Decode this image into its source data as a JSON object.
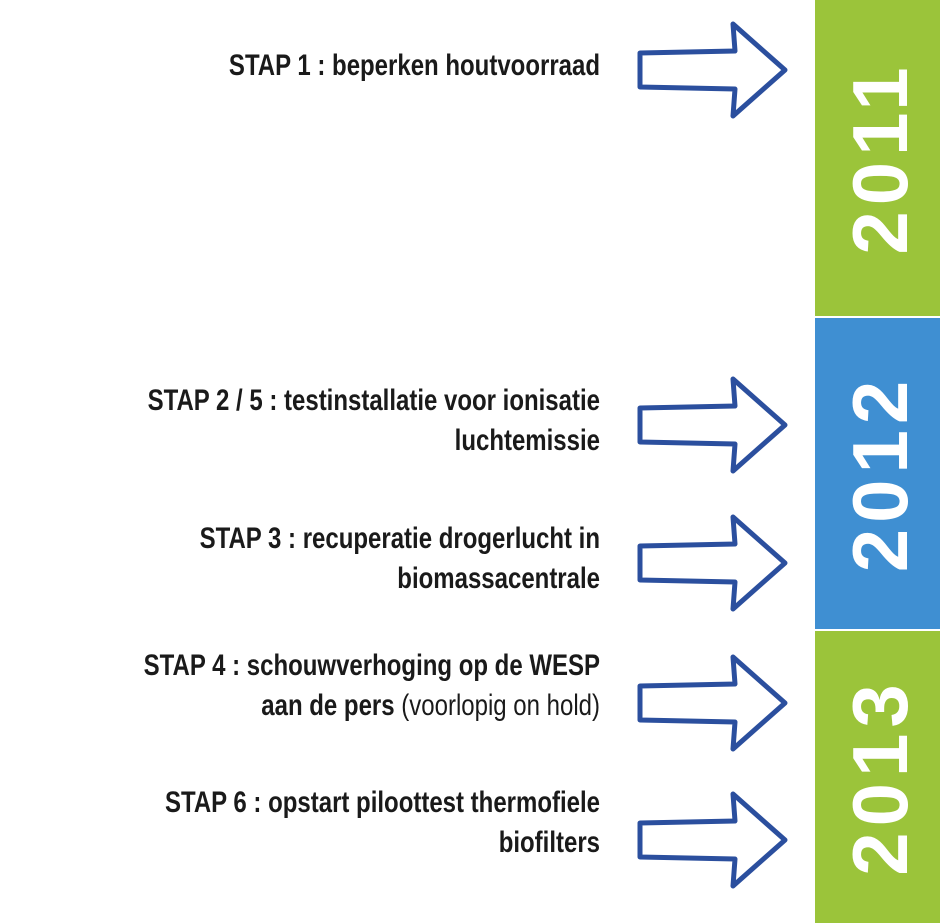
{
  "steps": [
    {
      "lines": [
        [
          {
            "text": "STAP 1 : beperken houtvoorraad",
            "bold": true
          }
        ]
      ]
    },
    {
      "lines": [
        [
          {
            "text": "STAP 2 / 5 : testinstallatie voor ionisatie",
            "bold": true
          }
        ],
        [
          {
            "text": "luchtemissie",
            "bold": true
          }
        ]
      ]
    },
    {
      "lines": [
        [
          {
            "text": "STAP 3 : recuperatie drogerlucht in",
            "bold": true
          }
        ],
        [
          {
            "text": "biomassacentrale",
            "bold": true
          }
        ]
      ]
    },
    {
      "lines": [
        [
          {
            "text": "STAP 4 : schouwverhoging op de WESP",
            "bold": true
          }
        ],
        [
          {
            "text": "aan de pers ",
            "bold": true
          },
          {
            "text": "(voorlopig on hold)",
            "bold": false
          }
        ]
      ]
    },
    {
      "lines": [
        [
          {
            "text": "STAP 6 : opstart piloottest thermofiele",
            "bold": true
          }
        ],
        [
          {
            "text": "biofilters",
            "bold": true
          }
        ]
      ]
    }
  ],
  "years": [
    {
      "label": "2011",
      "color": "#9bc43a"
    },
    {
      "label": "2012",
      "color": "#3f8fd2"
    },
    {
      "label": "2013",
      "color": "#9bc43a"
    }
  ]
}
